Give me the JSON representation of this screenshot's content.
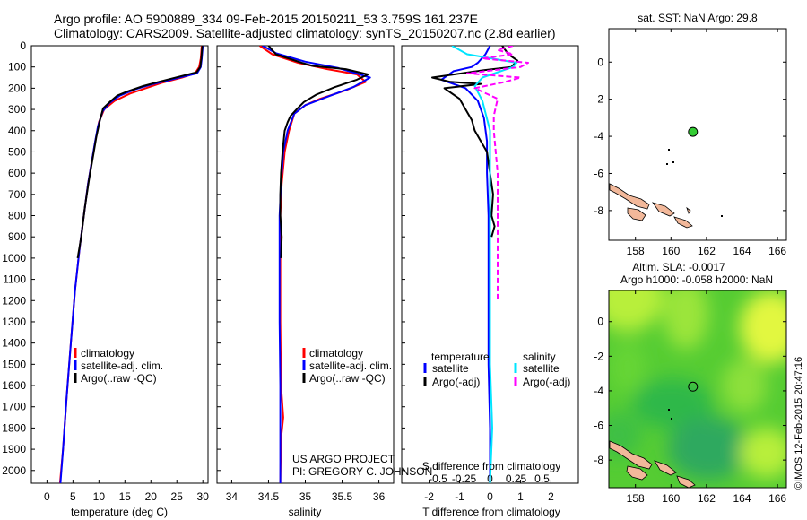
{
  "header": {
    "title_line1": "Argo profile: AO 5900889_334 09-Feb-2015 20150211_53 3.759S 161.237E",
    "title_line2": "Climatology: CARS2009. Satellite-adjusted climatology: synTS_20150207.nc (2.8d earlier)"
  },
  "credits": {
    "project": "US ARGO PROJECT",
    "pi": "PI: GREGORY C. JOHNSON",
    "imos": "©IMOS 12-Feb-2015 20:47:16"
  },
  "colors": {
    "climatology": "#ff0000",
    "satellite": "#0000ff",
    "argo": "#000000",
    "salinity_satellite": "#00e5ff",
    "salinity_argo": "#ff00ff",
    "map_marker": "#33cc33",
    "land": "#f2b89a"
  },
  "depth_axis": {
    "ticks": [
      0,
      100,
      200,
      300,
      400,
      500,
      600,
      700,
      800,
      900,
      1000,
      1100,
      1200,
      1300,
      1400,
      1500,
      1600,
      1700,
      1800,
      1900,
      2000
    ],
    "range": [
      0,
      2060
    ]
  },
  "chart_data": [
    {
      "id": "temperature",
      "type": "line",
      "xlabel": "temperature (deg C)",
      "xticks": [
        0,
        5,
        10,
        15,
        20,
        25,
        30
      ],
      "xlim": [
        -3,
        31
      ],
      "ylim": [
        0,
        2060
      ],
      "legend": [
        "climatology",
        "satellite-adj. clim.",
        "Argo(..raw -QC)"
      ],
      "series": [
        {
          "name": "climatology",
          "color": "#ff0000",
          "points": [
            [
              29.8,
              0
            ],
            [
              29.6,
              60
            ],
            [
              29.3,
              100
            ],
            [
              28.5,
              130
            ],
            [
              26,
              150
            ],
            [
              22,
              175
            ],
            [
              19,
              200
            ],
            [
              16,
              225
            ],
            [
              13,
              260
            ],
            [
              11,
              300
            ],
            [
              10,
              360
            ],
            [
              9.3,
              450
            ],
            [
              8.6,
              550
            ],
            [
              7.9,
              650
            ],
            [
              7.1,
              800
            ],
            [
              6.3,
              950
            ],
            [
              5.4,
              1150
            ],
            [
              4.6,
              1400
            ],
            [
              3.8,
              1650
            ],
            [
              3.1,
              1900
            ],
            [
              2.5,
              2060
            ]
          ]
        },
        {
          "name": "satellite-adj. clim.",
          "color": "#0000ff",
          "points": [
            [
              30.0,
              0
            ],
            [
              29.8,
              60
            ],
            [
              29.6,
              100
            ],
            [
              28.9,
              130
            ],
            [
              25.5,
              150
            ],
            [
              20.5,
              180
            ],
            [
              17,
              205
            ],
            [
              14,
              235
            ],
            [
              12,
              270
            ],
            [
              10.7,
              310
            ],
            [
              9.8,
              380
            ],
            [
              9.2,
              460
            ],
            [
              8.6,
              550
            ],
            [
              7.9,
              650
            ],
            [
              7.1,
              800
            ],
            [
              6.3,
              950
            ],
            [
              5.4,
              1150
            ],
            [
              4.6,
              1400
            ],
            [
              3.8,
              1650
            ],
            [
              3.1,
              1900
            ],
            [
              2.6,
              2060
            ]
          ]
        },
        {
          "name": "Argo(..raw -QC)",
          "color": "#000000",
          "points": [
            [
              29.9,
              0
            ],
            [
              29.7,
              60
            ],
            [
              29.5,
              100
            ],
            [
              28.8,
              125
            ],
            [
              25.6,
              145
            ],
            [
              21.5,
              170
            ],
            [
              18.5,
              190
            ],
            [
              15.5,
              215
            ],
            [
              13.5,
              235
            ],
            [
              12.3,
              260
            ],
            [
              10.8,
              295
            ],
            [
              10.2,
              350
            ],
            [
              9.5,
              430
            ],
            [
              8.8,
              530
            ],
            [
              8.1,
              630
            ],
            [
              7.3,
              760
            ],
            [
              6.6,
              900
            ],
            [
              5.9,
              1000
            ]
          ]
        }
      ]
    },
    {
      "id": "salinity",
      "type": "line",
      "xlabel": "salinity",
      "xticks": [
        34,
        34.5,
        35,
        35.5,
        36
      ],
      "xlim": [
        33.8,
        36.2
      ],
      "ylim": [
        0,
        2060
      ],
      "legend": [
        "climatology",
        "satellite-adj. clim.",
        "Argo(..raw -QC)"
      ],
      "series": [
        {
          "name": "climatology",
          "color": "#ff0000",
          "points": [
            [
              34.38,
              0
            ],
            [
              34.55,
              40
            ],
            [
              34.9,
              80
            ],
            [
              35.3,
              110
            ],
            [
              35.7,
              135
            ],
            [
              35.82,
              170
            ],
            [
              35.55,
              210
            ],
            [
              35.2,
              250
            ],
            [
              35.0,
              280
            ],
            [
              34.85,
              320
            ],
            [
              34.78,
              400
            ],
            [
              34.72,
              500
            ],
            [
              34.68,
              650
            ],
            [
              34.66,
              800
            ],
            [
              34.66,
              1000
            ],
            [
              34.66,
              1300
            ],
            [
              34.67,
              1600
            ],
            [
              34.7,
              1750
            ],
            [
              34.67,
              1850
            ],
            [
              34.66,
              2060
            ]
          ]
        },
        {
          "name": "satellite-adj. clim.",
          "color": "#0000ff",
          "points": [
            [
              34.42,
              0
            ],
            [
              34.6,
              35
            ],
            [
              35.0,
              75
            ],
            [
              35.45,
              105
            ],
            [
              35.88,
              150
            ],
            [
              35.65,
              195
            ],
            [
              35.3,
              240
            ],
            [
              35.0,
              280
            ],
            [
              34.85,
              320
            ],
            [
              34.76,
              400
            ],
            [
              34.7,
              500
            ],
            [
              34.67,
              650
            ],
            [
              34.65,
              800
            ],
            [
              34.65,
              1000
            ],
            [
              34.65,
              1300
            ],
            [
              34.66,
              1600
            ],
            [
              34.66,
              1850
            ],
            [
              34.66,
              2060
            ]
          ]
        },
        {
          "name": "Argo(..raw -QC)",
          "color": "#000000",
          "points": [
            [
              34.5,
              0
            ],
            [
              34.6,
              40
            ],
            [
              34.95,
              80
            ],
            [
              35.1,
              95
            ],
            [
              35.55,
              110
            ],
            [
              35.85,
              135
            ],
            [
              35.7,
              160
            ],
            [
              35.4,
              195
            ],
            [
              35.15,
              230
            ],
            [
              34.98,
              265
            ],
            [
              34.88,
              300
            ],
            [
              34.8,
              330
            ],
            [
              34.76,
              360
            ],
            [
              34.72,
              400
            ],
            [
              34.69,
              500
            ],
            [
              34.67,
              600
            ],
            [
              34.66,
              700
            ],
            [
              34.66,
              800
            ],
            [
              34.68,
              900
            ],
            [
              34.67,
              1000
            ]
          ]
        }
      ]
    },
    {
      "id": "difference",
      "type": "line",
      "xlabel": "T difference from climatology",
      "xlabel_top": "S difference from climatology",
      "xticks": [
        -2,
        -1,
        0,
        1,
        2
      ],
      "xticks_top": [
        "-0.5",
        "-0.25",
        "0",
        "0.25",
        "0.5"
      ],
      "xlim": [
        -2.9,
        2.9
      ],
      "ylim": [
        0,
        2060
      ],
      "legend_titles": [
        "temperature",
        "salinity"
      ],
      "legend": [
        "satellite",
        "Argo(-adj)",
        "satellite",
        "Argo(-adj)"
      ],
      "series": [
        {
          "name": "satellite",
          "color": "#0000ff",
          "points": [
            [
              0,
              0
            ],
            [
              -0.15,
              40
            ],
            [
              -0.4,
              80
            ],
            [
              -0.6,
              100
            ],
            [
              -1.2,
              120
            ],
            [
              -1.6,
              160
            ],
            [
              -0.8,
              200
            ],
            [
              -0.4,
              260
            ],
            [
              -0.2,
              340
            ],
            [
              -0.1,
              450
            ],
            [
              -0.1,
              600
            ],
            [
              -0.05,
              800
            ],
            [
              -0.05,
              1100
            ],
            [
              -0.05,
              1500
            ],
            [
              0,
              1800
            ],
            [
              0,
              2060
            ]
          ]
        },
        {
          "name": "Argo(-adj)",
          "color": "#000000",
          "points": [
            [
              0.4,
              0
            ],
            [
              0.6,
              40
            ],
            [
              0.9,
              70
            ],
            [
              0.7,
              100
            ],
            [
              -0.2,
              115
            ],
            [
              -1.9,
              150
            ],
            [
              -1.3,
              170
            ],
            [
              -0.3,
              180
            ],
            [
              -1.5,
              200
            ],
            [
              -1.0,
              250
            ],
            [
              -0.8,
              300
            ],
            [
              -0.6,
              350
            ],
            [
              -0.5,
              400
            ],
            [
              -0.3,
              450
            ],
            [
              -0.1,
              500
            ],
            [
              0,
              600
            ],
            [
              0.1,
              700
            ],
            [
              0.05,
              800
            ],
            [
              0.15,
              850
            ],
            [
              0.05,
              900
            ]
          ]
        },
        {
          "name": "satellite",
          "color": "#00e5ff",
          "points": [
            [
              -0.5,
              0
            ],
            [
              -0.3,
              40
            ],
            [
              0.35,
              80
            ],
            [
              0.3,
              100
            ],
            [
              -0.1,
              150
            ],
            [
              -0.2,
              190
            ],
            [
              -0.1,
              260
            ],
            [
              0,
              400
            ],
            [
              0,
              700
            ],
            [
              0,
              1000
            ],
            [
              0,
              1300
            ],
            [
              0,
              1500
            ],
            [
              0.03,
              1800
            ],
            [
              0,
              2060
            ]
          ]
        },
        {
          "name": "Argo(-adj)",
          "color": "#ff00ff",
          "points": [
            [
              0.3,
              0
            ],
            [
              0.1,
              20
            ],
            [
              0.3,
              40
            ],
            [
              -0.1,
              60
            ],
            [
              0.5,
              80
            ],
            [
              0.4,
              100
            ],
            [
              -0.3,
              130
            ],
            [
              0.4,
              150
            ],
            [
              0.2,
              170
            ],
            [
              -0.2,
              200
            ],
            [
              0.1,
              250
            ],
            [
              0.05,
              330
            ],
            [
              0.05,
              400
            ],
            [
              0.1,
              600
            ],
            [
              0.1,
              800
            ],
            [
              0.1,
              1000
            ],
            [
              0.1,
              1200
            ]
          ]
        }
      ]
    },
    {
      "id": "sst-map",
      "type": "scatter",
      "title": "sat. SST: NaN Argo: 29.8",
      "xticks": [
        158,
        160,
        162,
        164,
        166
      ],
      "yticks": [
        0,
        -2,
        -4,
        -6,
        -8
      ],
      "xlim": [
        156.5,
        166.5
      ],
      "ylim": [
        -9.6,
        1.8
      ],
      "marker": {
        "lon": 161.237,
        "lat": -3.759
      }
    },
    {
      "id": "sla-map",
      "type": "heatmap",
      "title_line1": "Altim. SLA: -0.0017",
      "title_line2": "Argo h1000: -0.058 h2000: NaN",
      "xticks": [
        158,
        160,
        162,
        164,
        166
      ],
      "yticks": [
        0,
        -2,
        -4,
        -6,
        -8
      ],
      "xlim": [
        156.5,
        166.5
      ],
      "ylim": [
        -9.6,
        1.8
      ],
      "marker": {
        "lon": 161.237,
        "lat": -3.759
      }
    }
  ]
}
